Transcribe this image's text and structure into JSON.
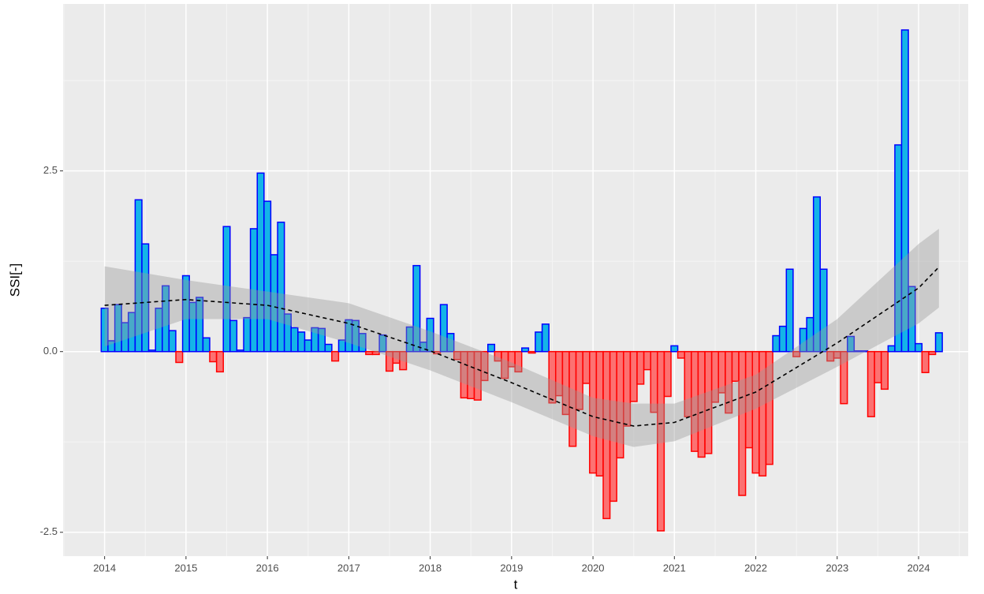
{
  "chart_data": {
    "type": "bar",
    "x_label": "t",
    "y_label": "SSI[-]",
    "x": [
      2014.0,
      2014.083,
      2014.167,
      2014.25,
      2014.333,
      2014.417,
      2014.5,
      2014.583,
      2014.667,
      2014.75,
      2014.833,
      2014.917,
      2015.0,
      2015.083,
      2015.167,
      2015.25,
      2015.333,
      2015.417,
      2015.5,
      2015.583,
      2015.667,
      2015.75,
      2015.833,
      2015.917,
      2016.0,
      2016.083,
      2016.167,
      2016.25,
      2016.333,
      2016.417,
      2016.5,
      2016.583,
      2016.667,
      2016.75,
      2016.833,
      2016.917,
      2017.0,
      2017.083,
      2017.167,
      2017.25,
      2017.333,
      2017.417,
      2017.5,
      2017.583,
      2017.667,
      2017.75,
      2017.833,
      2017.917,
      2018.0,
      2018.083,
      2018.167,
      2018.25,
      2018.333,
      2018.417,
      2018.5,
      2018.583,
      2018.667,
      2018.75,
      2018.833,
      2018.917,
      2019.0,
      2019.083,
      2019.167,
      2019.25,
      2019.333,
      2019.417,
      2019.5,
      2019.583,
      2019.667,
      2019.75,
      2019.833,
      2019.917,
      2020.0,
      2020.083,
      2020.167,
      2020.25,
      2020.333,
      2020.417,
      2020.5,
      2020.583,
      2020.667,
      2020.75,
      2020.833,
      2020.917,
      2021.0,
      2021.083,
      2021.167,
      2021.25,
      2021.333,
      2021.417,
      2021.5,
      2021.583,
      2021.667,
      2021.75,
      2021.833,
      2021.917,
      2022.0,
      2022.083,
      2022.167,
      2022.25,
      2022.333,
      2022.417,
      2022.5,
      2022.583,
      2022.667,
      2022.75,
      2022.833,
      2022.917,
      2023.0,
      2023.083,
      2023.167,
      2023.25,
      2023.333,
      2023.417,
      2023.5,
      2023.583,
      2023.667,
      2023.75,
      2023.833,
      2023.917,
      2024.0,
      2024.083,
      2024.167,
      2024.25
    ],
    "values": [
      0.6,
      0.15,
      0.65,
      0.4,
      0.54,
      2.1,
      1.49,
      0.02,
      0.6,
      0.91,
      0.29,
      -0.15,
      1.05,
      0.68,
      0.75,
      0.19,
      -0.14,
      -0.28,
      1.73,
      0.43,
      0.02,
      0.47,
      1.7,
      2.47,
      2.08,
      1.34,
      1.79,
      0.52,
      0.33,
      0.27,
      0.16,
      0.33,
      0.32,
      0.1,
      -0.13,
      0.16,
      0.44,
      0.43,
      0.25,
      -0.04,
      -0.04,
      0.23,
      -0.27,
      -0.16,
      -0.25,
      0.34,
      1.19,
      0.13,
      0.46,
      -0.03,
      0.65,
      0.25,
      -0.11,
      -0.64,
      -0.65,
      -0.67,
      -0.4,
      0.1,
      -0.13,
      -0.37,
      -0.21,
      -0.28,
      0.05,
      -0.02,
      0.27,
      0.38,
      -0.71,
      -0.61,
      -0.87,
      -1.31,
      -0.8,
      -0.44,
      -1.68,
      -1.72,
      -2.31,
      -2.07,
      -1.47,
      -1.03,
      -0.69,
      -0.45,
      -0.25,
      -0.84,
      -2.48,
      -0.62,
      0.08,
      -0.09,
      -0.9,
      -1.38,
      -1.46,
      -1.41,
      -0.7,
      -0.57,
      -0.85,
      -0.41,
      -1.99,
      -1.33,
      -1.68,
      -1.72,
      -1.56,
      0.22,
      0.35,
      1.14,
      -0.07,
      0.32,
      0.47,
      2.14,
      1.14,
      -0.13,
      -0.09,
      -0.72,
      0.21,
      0.01,
      0.01,
      -0.9,
      -0.43,
      -0.52,
      0.08,
      2.86,
      4.45,
      0.9,
      0.11,
      -0.29,
      -0.04,
      0.26
    ],
    "positive_color": "#14b4e8",
    "positive_edge": "#0000ff",
    "negative_color": "#ff5c5c",
    "negative_edge": "#ff0000",
    "xlim": [
      2013.49,
      2024.61
    ],
    "xticks": [
      2014,
      2015,
      2016,
      2017,
      2018,
      2019,
      2020,
      2021,
      2022,
      2023,
      2024
    ],
    "ylim": [
      -2.83,
      4.81
    ],
    "yticks": [
      -2.5,
      {
        "value": 0,
        "label": "0.0"
      },
      2.5
    ],
    "grid": true,
    "trend": {
      "x": [
        2014,
        2015,
        2016,
        2017,
        2018,
        2019,
        2020,
        2020.5,
        2021,
        2022,
        2023,
        2024,
        2024.25
      ],
      "values": [
        0.64,
        0.72,
        0.64,
        0.39,
        0.01,
        -0.43,
        -0.9,
        -1.03,
        -0.98,
        -0.56,
        0.12,
        0.88,
        1.17
      ],
      "upper": [
        1.18,
        0.99,
        0.83,
        0.67,
        0.28,
        -0.15,
        -0.64,
        -0.72,
        -0.72,
        -0.32,
        0.45,
        1.49,
        1.7
      ],
      "lower": [
        0.07,
        0.45,
        0.45,
        0.12,
        -0.26,
        -0.7,
        -1.17,
        -1.32,
        -1.24,
        -0.79,
        -0.21,
        0.39,
        0.61
      ],
      "color": "#000000",
      "band_color": "#999999"
    }
  }
}
